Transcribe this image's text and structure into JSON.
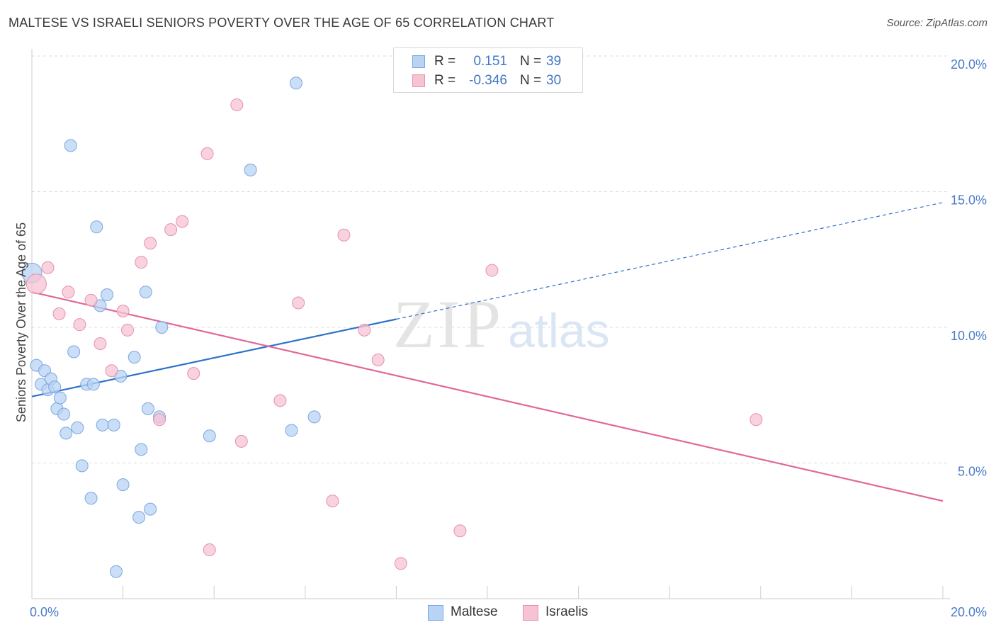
{
  "title": "MALTESE VS ISRAELI SENIORS POVERTY OVER THE AGE OF 65 CORRELATION CHART",
  "source": "Source: ZipAtlas.com",
  "watermark": {
    "zip": "ZIP",
    "atlas": "atlas"
  },
  "colors": {
    "maltese_fill": "#b8d3f4",
    "maltese_stroke": "#7ba7e0",
    "maltese_line": "#2f72c9",
    "israeli_fill": "#f6c3d3",
    "israeli_stroke": "#e890ad",
    "israeli_line": "#e0689a",
    "tick_text": "#4a7cc9",
    "grid": "#dddddd"
  },
  "legend": {
    "rows": [
      {
        "r_label": "R =",
        "r_value": "0.151",
        "n_label": "N =",
        "n_value": "39"
      },
      {
        "r_label": "R =",
        "r_value": "-0.346",
        "n_label": "N =",
        "n_value": "30"
      }
    ]
  },
  "bottom_legend": {
    "maltese": "Maltese",
    "israelis": "Israelis"
  },
  "chart_data": {
    "type": "scatter",
    "ylabel": "Seniors Poverty Over the Age of 65",
    "xlim": [
      0,
      20
    ],
    "ylim": [
      0,
      20
    ],
    "y_ticks": [
      {
        "value": 5,
        "label": "5.0%"
      },
      {
        "value": 10,
        "label": "10.0%"
      },
      {
        "value": 15,
        "label": "15.0%"
      },
      {
        "value": 20,
        "label": "20.0%"
      }
    ],
    "x_tick_labels": [
      {
        "value": 0,
        "label": "0.0%"
      },
      {
        "value": 20,
        "label": "20.0%"
      }
    ],
    "grid": true,
    "legend_position": "top-center",
    "series": [
      {
        "name": "Maltese",
        "r": 0.151,
        "n": 39,
        "trend": {
          "x0": 0,
          "y0": 7.45,
          "x1": 8,
          "y1": 10.3,
          "x_dash_end": 20,
          "y_dash_end": 14.6
        },
        "points": [
          [
            0.0,
            12.0
          ],
          [
            0.1,
            8.6
          ],
          [
            0.2,
            7.9
          ],
          [
            0.28,
            8.4
          ],
          [
            0.35,
            7.7
          ],
          [
            0.42,
            8.1
          ],
          [
            0.5,
            7.8
          ],
          [
            0.55,
            7.0
          ],
          [
            0.62,
            7.4
          ],
          [
            0.7,
            6.8
          ],
          [
            0.75,
            6.1
          ],
          [
            0.85,
            16.7
          ],
          [
            0.92,
            9.1
          ],
          [
            1.0,
            6.3
          ],
          [
            1.1,
            4.9
          ],
          [
            1.2,
            7.9
          ],
          [
            1.3,
            3.7
          ],
          [
            1.35,
            7.9
          ],
          [
            1.42,
            13.7
          ],
          [
            1.5,
            10.8
          ],
          [
            1.55,
            6.4
          ],
          [
            1.65,
            11.2
          ],
          [
            1.8,
            6.4
          ],
          [
            1.85,
            1.0
          ],
          [
            1.95,
            8.2
          ],
          [
            2.0,
            4.2
          ],
          [
            2.25,
            8.9
          ],
          [
            2.35,
            3.0
          ],
          [
            2.4,
            5.5
          ],
          [
            2.5,
            11.3
          ],
          [
            2.55,
            7.0
          ],
          [
            2.6,
            3.3
          ],
          [
            2.8,
            6.7
          ],
          [
            2.85,
            10.0
          ],
          [
            3.9,
            6.0
          ],
          [
            4.8,
            15.8
          ],
          [
            5.7,
            6.2
          ],
          [
            5.8,
            19.0
          ],
          [
            6.2,
            6.7
          ]
        ]
      },
      {
        "name": "Israelis",
        "r": -0.346,
        "n": 30,
        "trend": {
          "x0": 0,
          "y0": 11.3,
          "x1": 20,
          "y1": 3.6
        },
        "points": [
          [
            0.1,
            11.6
          ],
          [
            0.35,
            12.2
          ],
          [
            0.6,
            10.5
          ],
          [
            0.8,
            11.3
          ],
          [
            1.05,
            10.1
          ],
          [
            1.3,
            11.0
          ],
          [
            1.5,
            9.4
          ],
          [
            1.75,
            8.4
          ],
          [
            2.0,
            10.6
          ],
          [
            2.1,
            9.9
          ],
          [
            2.4,
            12.4
          ],
          [
            2.6,
            13.1
          ],
          [
            2.8,
            6.6
          ],
          [
            3.05,
            13.6
          ],
          [
            3.3,
            13.9
          ],
          [
            3.55,
            8.3
          ],
          [
            3.85,
            16.4
          ],
          [
            3.9,
            1.8
          ],
          [
            4.5,
            18.2
          ],
          [
            4.6,
            5.8
          ],
          [
            5.45,
            7.3
          ],
          [
            5.85,
            10.9
          ],
          [
            6.6,
            3.6
          ],
          [
            6.85,
            13.4
          ],
          [
            7.3,
            9.9
          ],
          [
            7.6,
            8.8
          ],
          [
            8.1,
            1.3
          ],
          [
            9.4,
            2.5
          ],
          [
            10.1,
            12.1
          ],
          [
            15.9,
            6.6
          ]
        ]
      }
    ]
  }
}
